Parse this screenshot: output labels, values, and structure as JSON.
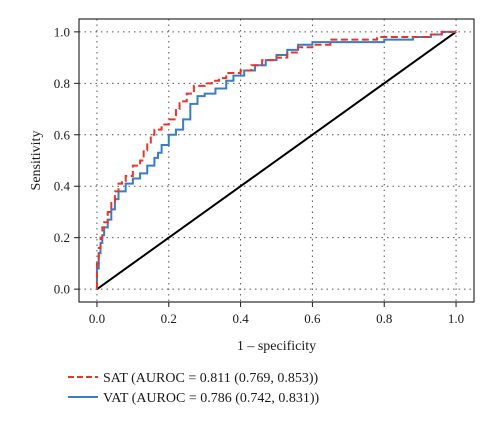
{
  "chart_data": {
    "type": "line",
    "title": "",
    "xlabel": "1 – specificity",
    "ylabel": "Sensitivity",
    "xlim": [
      -0.05,
      1.05
    ],
    "ylim": [
      -0.05,
      1.05
    ],
    "x_ticks": [
      "0.0",
      "0.2",
      "0.4",
      "0.6",
      "0.8",
      "1.0"
    ],
    "y_ticks": [
      "0.0",
      "0.2",
      "0.4",
      "0.6",
      "0.8",
      "1.0"
    ],
    "grid": true,
    "legend_position": "below",
    "reference_line": {
      "x": [
        0,
        1
      ],
      "y": [
        0,
        1
      ],
      "color": "#000000"
    },
    "series": [
      {
        "name": "SAT (AUROC = 0.811 (0.769, 0.853))",
        "color": "#e8352c",
        "dash": true,
        "x": [
          0,
          0,
          0.005,
          0.005,
          0.01,
          0.01,
          0.015,
          0.015,
          0.02,
          0.02,
          0.03,
          0.03,
          0.04,
          0.04,
          0.05,
          0.05,
          0.06,
          0.06,
          0.07,
          0.07,
          0.08,
          0.08,
          0.1,
          0.1,
          0.12,
          0.12,
          0.13,
          0.13,
          0.14,
          0.14,
          0.15,
          0.15,
          0.16,
          0.16,
          0.18,
          0.18,
          0.2,
          0.2,
          0.22,
          0.22,
          0.23,
          0.23,
          0.25,
          0.25,
          0.27,
          0.27,
          0.3,
          0.3,
          0.32,
          0.32,
          0.34,
          0.34,
          0.36,
          0.36,
          0.4,
          0.4,
          0.43,
          0.43,
          0.46,
          0.46,
          0.5,
          0.5,
          0.53,
          0.53,
          0.56,
          0.56,
          0.6,
          0.6,
          0.65,
          0.65,
          0.7,
          0.7,
          0.78,
          0.78,
          0.85,
          0.85,
          0.93,
          0.93,
          0.96,
          0.96,
          1.0
        ],
        "y": [
          0,
          0.1,
          0.1,
          0.16,
          0.16,
          0.2,
          0.2,
          0.24,
          0.24,
          0.26,
          0.26,
          0.3,
          0.3,
          0.34,
          0.34,
          0.38,
          0.38,
          0.41,
          0.41,
          0.42,
          0.42,
          0.44,
          0.44,
          0.48,
          0.48,
          0.5,
          0.5,
          0.54,
          0.54,
          0.57,
          0.57,
          0.6,
          0.6,
          0.62,
          0.62,
          0.64,
          0.64,
          0.66,
          0.66,
          0.7,
          0.7,
          0.73,
          0.73,
          0.76,
          0.76,
          0.79,
          0.79,
          0.8,
          0.8,
          0.81,
          0.81,
          0.82,
          0.82,
          0.84,
          0.84,
          0.85,
          0.85,
          0.87,
          0.87,
          0.89,
          0.89,
          0.9,
          0.9,
          0.92,
          0.92,
          0.94,
          0.94,
          0.95,
          0.95,
          0.97,
          0.97,
          0.97,
          0.97,
          0.98,
          0.98,
          0.98,
          0.98,
          0.99,
          0.99,
          1.0,
          1.0
        ]
      },
      {
        "name": "VAT (AUROC = 0.786 (0.742, 0.831))",
        "color": "#3a7dc0",
        "dash": false,
        "x": [
          0,
          0,
          0.005,
          0.005,
          0.01,
          0.01,
          0.015,
          0.015,
          0.02,
          0.02,
          0.03,
          0.03,
          0.04,
          0.04,
          0.05,
          0.05,
          0.06,
          0.06,
          0.08,
          0.08,
          0.1,
          0.1,
          0.12,
          0.12,
          0.14,
          0.14,
          0.16,
          0.16,
          0.17,
          0.17,
          0.18,
          0.18,
          0.2,
          0.2,
          0.22,
          0.22,
          0.24,
          0.24,
          0.26,
          0.26,
          0.28,
          0.28,
          0.3,
          0.3,
          0.33,
          0.33,
          0.36,
          0.36,
          0.38,
          0.38,
          0.41,
          0.41,
          0.44,
          0.44,
          0.47,
          0.47,
          0.5,
          0.5,
          0.53,
          0.53,
          0.56,
          0.56,
          0.6,
          0.6,
          0.64,
          0.64,
          0.7,
          0.7,
          0.8,
          0.8,
          0.88,
          0.88,
          0.93,
          0.93,
          0.96,
          0.96,
          1.0
        ],
        "y": [
          0,
          0.08,
          0.08,
          0.14,
          0.14,
          0.18,
          0.18,
          0.21,
          0.21,
          0.24,
          0.24,
          0.27,
          0.27,
          0.31,
          0.31,
          0.35,
          0.35,
          0.38,
          0.38,
          0.41,
          0.41,
          0.43,
          0.43,
          0.45,
          0.45,
          0.48,
          0.48,
          0.51,
          0.51,
          0.53,
          0.53,
          0.56,
          0.56,
          0.6,
          0.6,
          0.62,
          0.62,
          0.66,
          0.66,
          0.72,
          0.72,
          0.75,
          0.75,
          0.76,
          0.76,
          0.78,
          0.78,
          0.81,
          0.81,
          0.83,
          0.83,
          0.85,
          0.85,
          0.87,
          0.87,
          0.89,
          0.89,
          0.91,
          0.91,
          0.93,
          0.93,
          0.95,
          0.95,
          0.96,
          0.96,
          0.96,
          0.96,
          0.96,
          0.96,
          0.97,
          0.97,
          0.98,
          0.98,
          0.99,
          0.99,
          1.0,
          1.0
        ]
      }
    ]
  }
}
